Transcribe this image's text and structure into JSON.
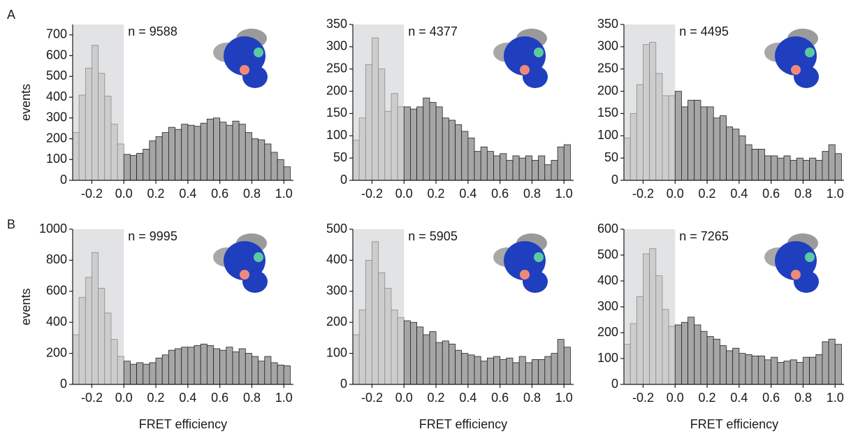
{
  "panel_labels": [
    "A",
    "B"
  ],
  "chart_data": [
    {
      "type": "histogram",
      "annotation": "n = 9588",
      "ylabel": "events",
      "bins": [
        -0.32,
        -0.28,
        -0.24,
        -0.2,
        -0.16,
        -0.12,
        -0.08,
        -0.04,
        0,
        0.04,
        0.08,
        0.12,
        0.16,
        0.2,
        0.24,
        0.28,
        0.32,
        0.36,
        0.4,
        0.44,
        0.48,
        0.52,
        0.56,
        0.6,
        0.64,
        0.68,
        0.72,
        0.76,
        0.8,
        0.84,
        0.88,
        0.92,
        0.96,
        1,
        1.04
      ],
      "values": [
        230,
        410,
        540,
        650,
        515,
        405,
        270,
        175,
        125,
        120,
        130,
        150,
        190,
        210,
        230,
        255,
        245,
        270,
        265,
        260,
        275,
        295,
        300,
        280,
        265,
        285,
        270,
        230,
        200,
        195,
        175,
        135,
        100,
        65
      ],
      "xlim": [
        -0.32,
        1.06
      ],
      "ylim": [
        0,
        750
      ],
      "xticks": [
        -0.2,
        {
          "value": 0,
          "label": "0.0"
        },
        0.2,
        0.4,
        0.6,
        0.8,
        {
          "value": 1,
          "label": "1.0"
        }
      ],
      "yticks": [
        0,
        100,
        200,
        300,
        400,
        500,
        600,
        700
      ],
      "shade_xlim": [
        -0.32,
        0
      ],
      "color": "#a6a6a6",
      "shade_color": "#cdcdcd",
      "shade_background": "#e2e3e5"
    },
    {
      "type": "histogram",
      "annotation": "n = 4377",
      "bins": [
        -0.32,
        -0.28,
        -0.24,
        -0.2,
        -0.16,
        -0.12,
        -0.08,
        -0.04,
        0,
        0.04,
        0.08,
        0.12,
        0.16,
        0.2,
        0.24,
        0.28,
        0.32,
        0.36,
        0.4,
        0.44,
        0.48,
        0.52,
        0.56,
        0.6,
        0.64,
        0.68,
        0.72,
        0.76,
        0.8,
        0.84,
        0.88,
        0.92,
        0.96,
        1,
        1.04
      ],
      "values": [
        90,
        140,
        260,
        320,
        250,
        155,
        195,
        165,
        165,
        160,
        165,
        185,
        175,
        165,
        140,
        135,
        125,
        110,
        95,
        65,
        75,
        65,
        55,
        60,
        45,
        55,
        50,
        55,
        45,
        55,
        35,
        45,
        75,
        80
      ],
      "xlim": [
        -0.32,
        1.06
      ],
      "ylim": [
        0,
        350
      ],
      "xticks": [
        -0.2,
        {
          "value": 0,
          "label": "0.0"
        },
        0.2,
        0.4,
        0.6,
        0.8,
        {
          "value": 1,
          "label": "1.0"
        }
      ],
      "yticks": [
        0,
        50,
        100,
        150,
        200,
        250,
        300,
        350
      ],
      "shade_xlim": [
        -0.32,
        0
      ],
      "color": "#a6a6a6",
      "shade_color": "#cdcdcd",
      "shade_background": "#e2e3e5"
    },
    {
      "type": "histogram",
      "annotation": "n = 4495",
      "bins": [
        -0.32,
        -0.28,
        -0.24,
        -0.2,
        -0.16,
        -0.12,
        -0.08,
        -0.04,
        0,
        0.04,
        0.08,
        0.12,
        0.16,
        0.2,
        0.24,
        0.28,
        0.32,
        0.36,
        0.4,
        0.44,
        0.48,
        0.52,
        0.56,
        0.6,
        0.64,
        0.68,
        0.72,
        0.76,
        0.8,
        0.84,
        0.88,
        0.92,
        0.96,
        1,
        1.04
      ],
      "values": [
        95,
        150,
        215,
        305,
        310,
        240,
        190,
        190,
        200,
        165,
        180,
        180,
        165,
        165,
        140,
        145,
        120,
        115,
        100,
        80,
        70,
        70,
        55,
        55,
        50,
        55,
        45,
        50,
        45,
        50,
        45,
        65,
        80,
        60
      ],
      "xlim": [
        -0.32,
        1.06
      ],
      "ylim": [
        0,
        350
      ],
      "xticks": [
        -0.2,
        {
          "value": 0,
          "label": "0.0"
        },
        0.2,
        0.4,
        0.6,
        0.8,
        {
          "value": 1,
          "label": "1.0"
        }
      ],
      "yticks": [
        0,
        50,
        100,
        150,
        200,
        250,
        300,
        350
      ],
      "shade_xlim": [
        -0.32,
        0
      ],
      "color": "#a6a6a6",
      "shade_color": "#cdcdcd",
      "shade_background": "#e2e3e5"
    },
    {
      "type": "histogram",
      "annotation": "n = 9995",
      "ylabel": "events",
      "xlabel": "FRET efficiency",
      "bins": [
        -0.32,
        -0.28,
        -0.24,
        -0.2,
        -0.16,
        -0.12,
        -0.08,
        -0.04,
        0,
        0.04,
        0.08,
        0.12,
        0.16,
        0.2,
        0.24,
        0.28,
        0.32,
        0.36,
        0.4,
        0.44,
        0.48,
        0.52,
        0.56,
        0.6,
        0.64,
        0.68,
        0.72,
        0.76,
        0.8,
        0.84,
        0.88,
        0.92,
        0.96,
        1,
        1.04
      ],
      "values": [
        320,
        560,
        690,
        850,
        620,
        460,
        290,
        180,
        150,
        130,
        140,
        130,
        140,
        170,
        190,
        220,
        230,
        240,
        240,
        250,
        260,
        250,
        230,
        220,
        240,
        210,
        230,
        200,
        180,
        150,
        180,
        140,
        125,
        120
      ],
      "xlim": [
        -0.32,
        1.06
      ],
      "ylim": [
        0,
        1000
      ],
      "xticks": [
        -0.2,
        {
          "value": 0,
          "label": "0.0"
        },
        0.2,
        0.4,
        0.6,
        0.8,
        {
          "value": 1,
          "label": "1.0"
        }
      ],
      "yticks": [
        0,
        200,
        400,
        600,
        800,
        1000
      ],
      "shade_xlim": [
        -0.32,
        0
      ],
      "color": "#a6a6a6",
      "shade_color": "#cdcdcd",
      "shade_background": "#e2e3e5"
    },
    {
      "type": "histogram",
      "annotation": "n = 5905",
      "xlabel": "FRET efficiency",
      "bins": [
        -0.32,
        -0.28,
        -0.24,
        -0.2,
        -0.16,
        -0.12,
        -0.08,
        -0.04,
        0,
        0.04,
        0.08,
        0.12,
        0.16,
        0.2,
        0.24,
        0.28,
        0.32,
        0.36,
        0.4,
        0.44,
        0.48,
        0.52,
        0.56,
        0.6,
        0.64,
        0.68,
        0.72,
        0.76,
        0.8,
        0.84,
        0.88,
        0.92,
        0.96,
        1,
        1.04
      ],
      "values": [
        160,
        240,
        400,
        460,
        360,
        310,
        240,
        215,
        205,
        200,
        185,
        160,
        170,
        135,
        140,
        130,
        110,
        100,
        95,
        90,
        75,
        85,
        90,
        80,
        85,
        70,
        90,
        70,
        80,
        80,
        90,
        100,
        145,
        120
      ],
      "xlim": [
        -0.32,
        1.06
      ],
      "ylim": [
        0,
        500
      ],
      "xticks": [
        -0.2,
        {
          "value": 0,
          "label": "0.0"
        },
        0.2,
        0.4,
        0.6,
        0.8,
        {
          "value": 1,
          "label": "1.0"
        }
      ],
      "yticks": [
        0,
        100,
        200,
        300,
        400,
        500
      ],
      "shade_xlim": [
        -0.32,
        0
      ],
      "color": "#a6a6a6",
      "shade_color": "#cdcdcd",
      "shade_background": "#e2e3e5"
    },
    {
      "type": "histogram",
      "annotation": "n = 7265",
      "xlabel": "FRET efficiency",
      "bins": [
        -0.32,
        -0.28,
        -0.24,
        -0.2,
        -0.16,
        -0.12,
        -0.08,
        -0.04,
        0,
        0.04,
        0.08,
        0.12,
        0.16,
        0.2,
        0.24,
        0.28,
        0.32,
        0.36,
        0.4,
        0.44,
        0.48,
        0.52,
        0.56,
        0.6,
        0.64,
        0.68,
        0.72,
        0.76,
        0.8,
        0.84,
        0.88,
        0.92,
        0.96,
        1,
        1.04
      ],
      "values": [
        155,
        235,
        340,
        505,
        525,
        420,
        290,
        225,
        230,
        240,
        260,
        230,
        205,
        185,
        175,
        150,
        130,
        140,
        120,
        115,
        110,
        110,
        95,
        105,
        85,
        90,
        95,
        85,
        105,
        105,
        115,
        165,
        175,
        155
      ],
      "xlim": [
        -0.32,
        1.06
      ],
      "ylim": [
        0,
        600
      ],
      "xticks": [
        -0.2,
        {
          "value": 0,
          "label": "0.0"
        },
        0.2,
        0.4,
        0.6,
        0.8,
        {
          "value": 1,
          "label": "1.0"
        }
      ],
      "yticks": [
        0,
        100,
        200,
        300,
        400,
        500,
        600
      ],
      "shade_xlim": [
        -0.32,
        0
      ],
      "color": "#a6a6a6",
      "shade_color": "#cdcdcd",
      "shade_background": "#e2e3e5"
    }
  ]
}
